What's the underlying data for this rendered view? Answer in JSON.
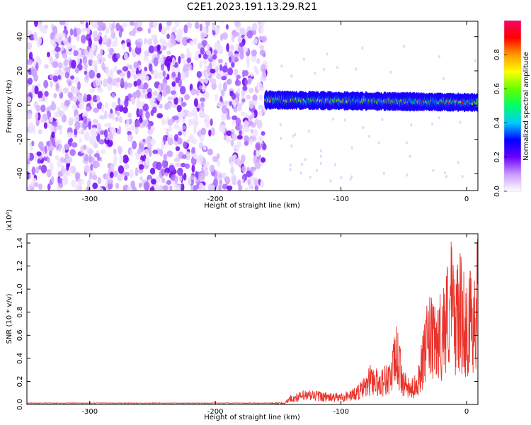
{
  "title": "C2E1.2023.191.13.29.R21",
  "chart_data": [
    {
      "type": "heatmap",
      "xlabel": "Height of straight line (km)",
      "ylabel": "Frequency (Hz)",
      "xlim": [
        -350,
        9
      ],
      "ylim": [
        -50,
        49
      ],
      "x_ticks": [
        -300,
        -200,
        -100,
        0
      ],
      "y_ticks": [
        -40,
        -20,
        0,
        20,
        40
      ],
      "noise_region_x": [
        -350,
        -160
      ],
      "signal_band": {
        "x_range": [
          -160,
          9
        ],
        "center_freq_hz": 3,
        "half_width_hz": 3
      },
      "colorbar": {
        "label": "Normalized spectral amplitude",
        "range": [
          0.0,
          1.0
        ],
        "ticks": [
          0.0,
          0.2,
          0.4,
          0.6,
          0.8
        ],
        "colors": [
          "#ffffff",
          "#cc99ff",
          "#6a00ff",
          "#0000ff",
          "#00ccff",
          "#00ff66",
          "#66ff00",
          "#ffff00",
          "#ff9900",
          "#ff0000",
          "#ff0066"
        ]
      }
    },
    {
      "type": "line",
      "xlabel": "Height of straight line (km)",
      "ylabel": "SNR (10 * v/v)",
      "y_multiplier": "(x10⁴)",
      "xlim": [
        -350,
        9
      ],
      "ylim": [
        0.0,
        1.48
      ],
      "x_ticks": [
        -300,
        -200,
        -100,
        0
      ],
      "y_ticks": [
        0.0,
        0.2,
        0.4,
        0.6,
        0.8,
        1.0,
        1.2,
        1.4
      ],
      "series": [
        {
          "color": "#e8332b",
          "x": [
            -350,
            -300,
            -250,
            -200,
            -160,
            -145,
            -140,
            -130,
            -120,
            -110,
            -100,
            -90,
            -80,
            -76,
            -70,
            -60,
            -56,
            -50,
            -45,
            -40,
            -35,
            -30,
            -25,
            -20,
            -15,
            -12,
            -10,
            -5,
            0,
            5,
            9
          ],
          "y": [
            0.01,
            0.01,
            0.01,
            0.01,
            0.01,
            0.02,
            0.08,
            0.12,
            0.13,
            0.1,
            0.1,
            0.14,
            0.25,
            0.38,
            0.3,
            0.4,
            0.72,
            0.3,
            0.2,
            0.28,
            0.6,
            0.98,
            0.85,
            1.02,
            1.3,
            1.48,
            1.2,
            1.32,
            1.08,
            1.28,
            1.48
          ]
        }
      ]
    }
  ]
}
